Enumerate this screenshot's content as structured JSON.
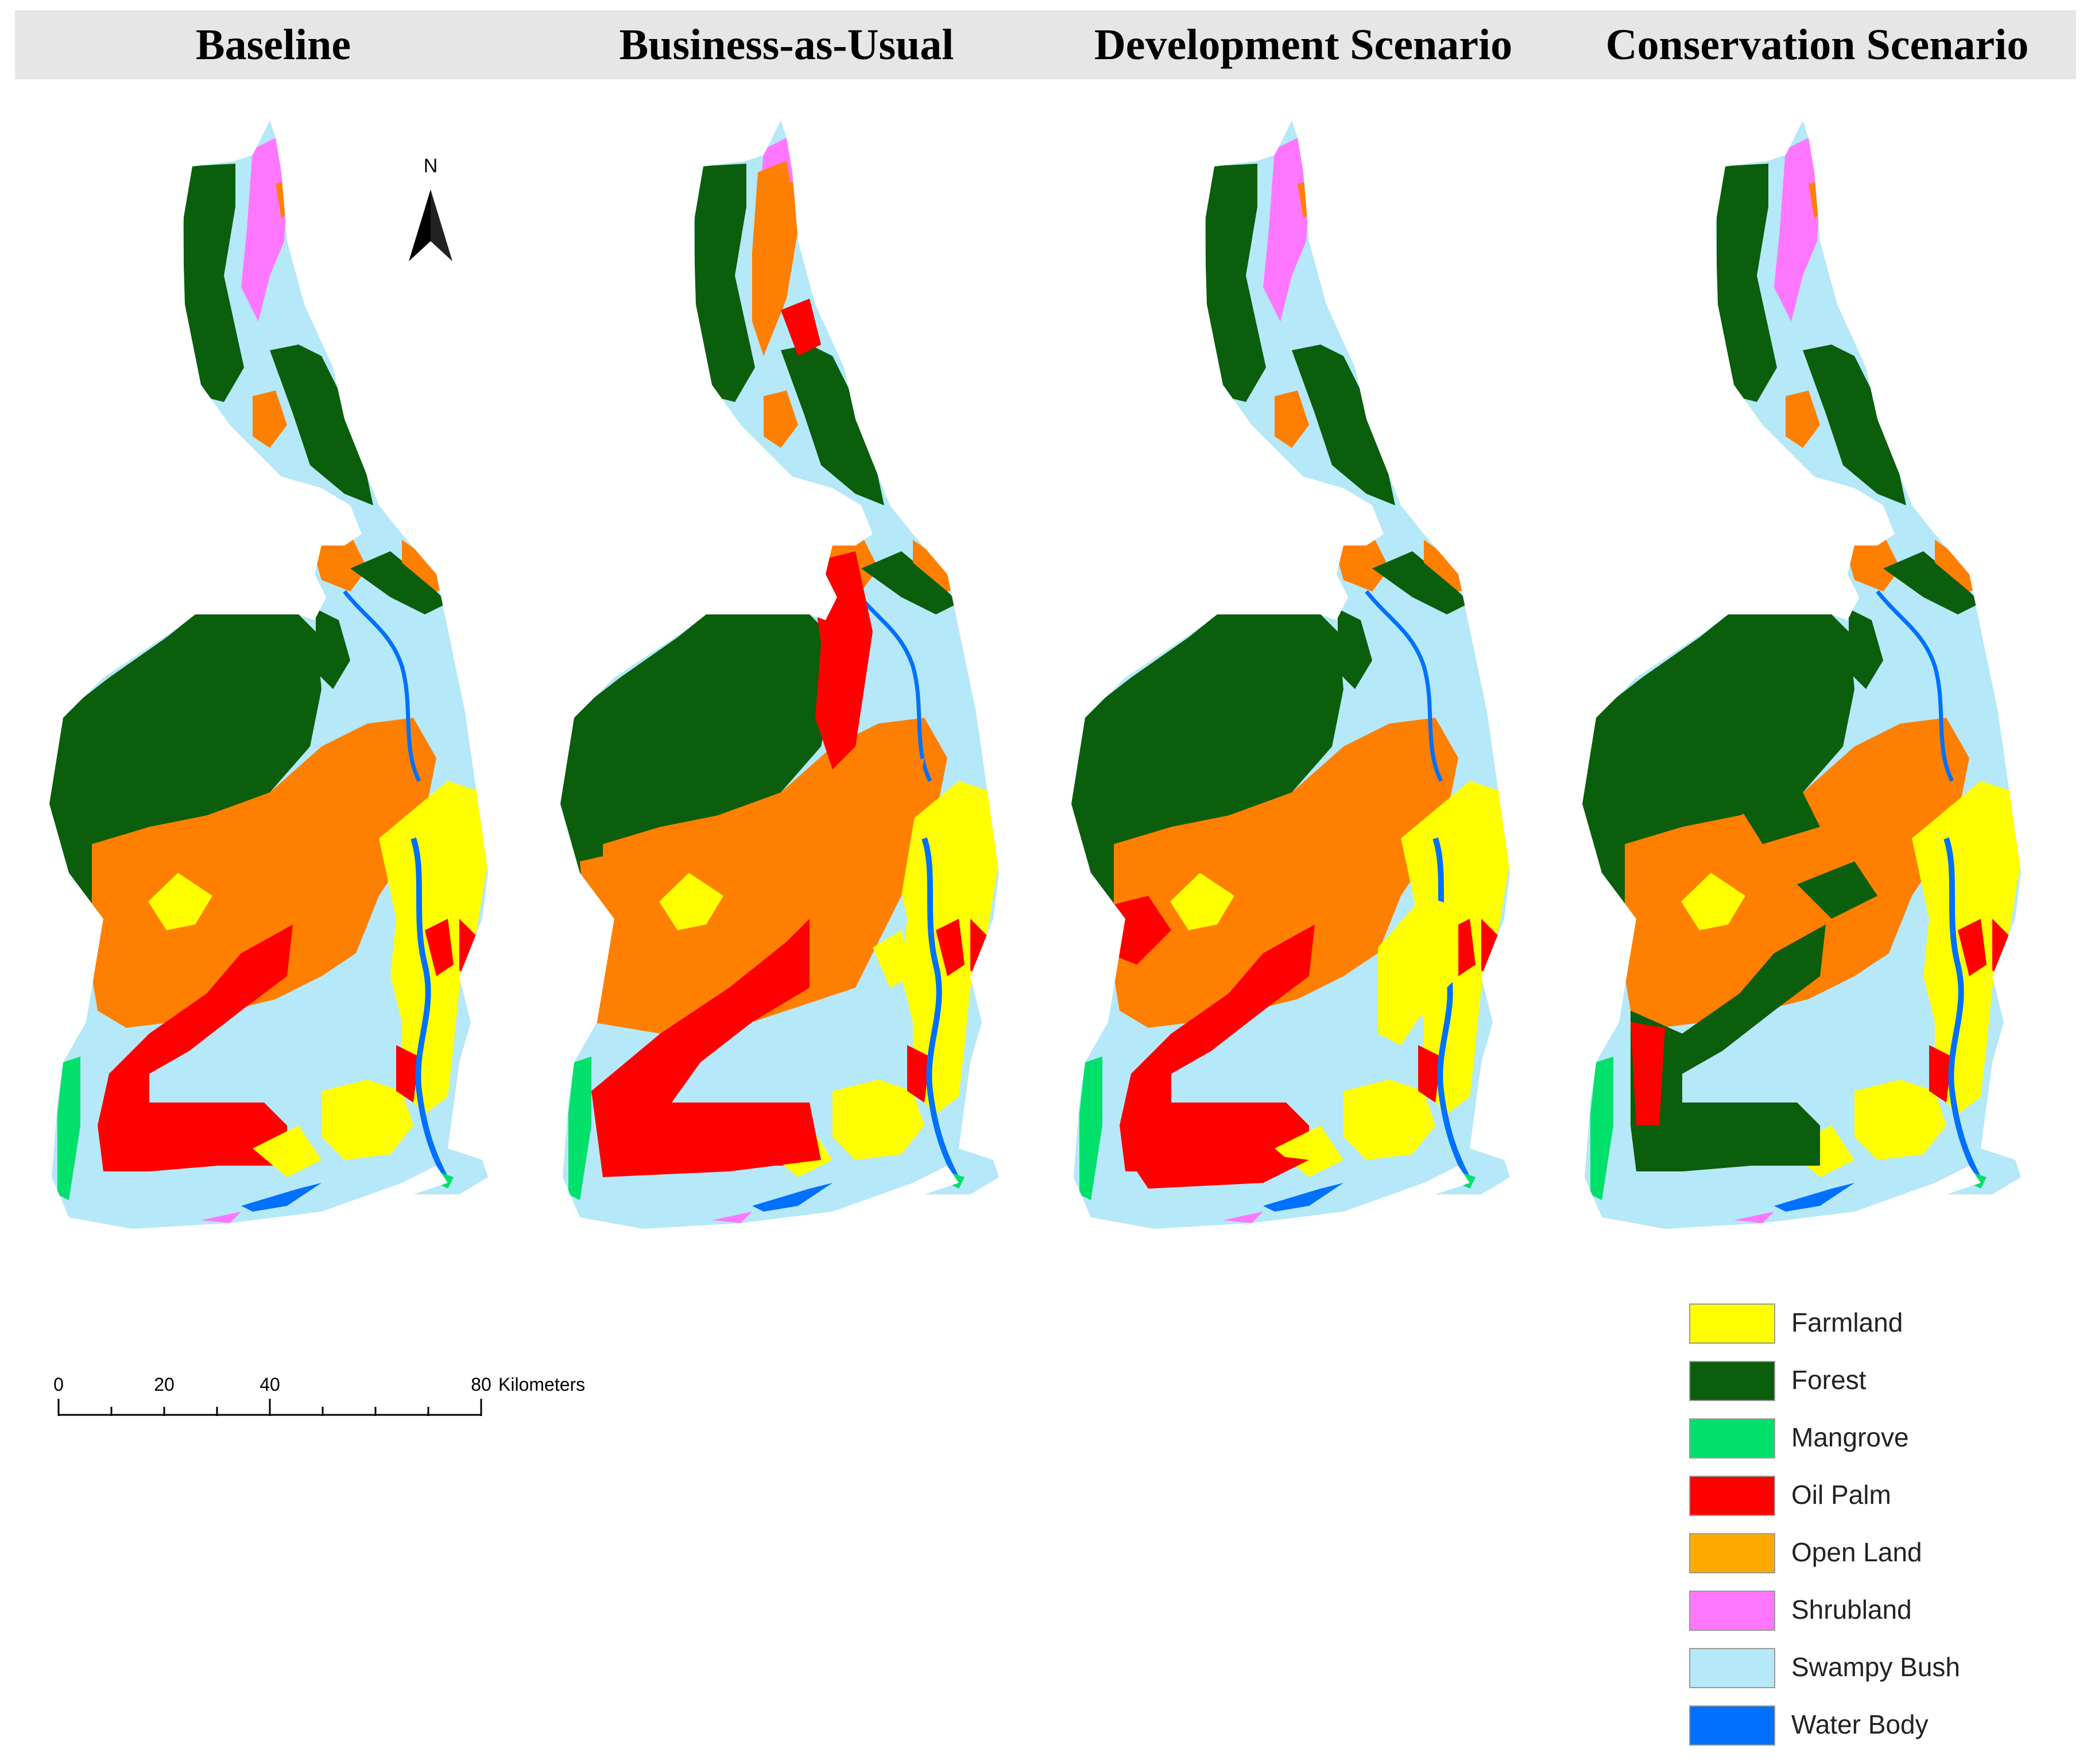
{
  "panels": [
    {
      "title": "Baseline"
    },
    {
      "title": "Business-as-Usual"
    },
    {
      "title": "Development Scenario"
    },
    {
      "title": "Conservation Scenario"
    }
  ],
  "north_arrow": {
    "label": "N"
  },
  "scale_bar": {
    "ticks": [
      "0",
      "20",
      "40",
      "80"
    ],
    "unit": "Kilometers"
  },
  "legend": {
    "items": [
      {
        "label": "Farmland",
        "color": "#ffff00"
      },
      {
        "label": "Forest",
        "color": "#0b5e0b"
      },
      {
        "label": "Mangrove",
        "color": "#00e06a"
      },
      {
        "label": "Oil Palm",
        "color": "#ff0000"
      },
      {
        "label": "Open Land",
        "color": "#ffaa00"
      },
      {
        "label": "Shrubland",
        "color": "#ff77ff"
      },
      {
        "label": "Swampy Bush",
        "color": "#b5e8f8"
      },
      {
        "label": "Water Body",
        "color": "#0070ff"
      }
    ]
  },
  "map_colors": {
    "swampy_bush": "#b5e8f8",
    "forest": "#0b5e0b",
    "open_land": "#ff7f00",
    "oil_palm": "#ff0000",
    "farmland": "#ffff00",
    "shrubland": "#ff77ff",
    "mangrove": "#00e06a",
    "water_body": "#0070ff"
  }
}
